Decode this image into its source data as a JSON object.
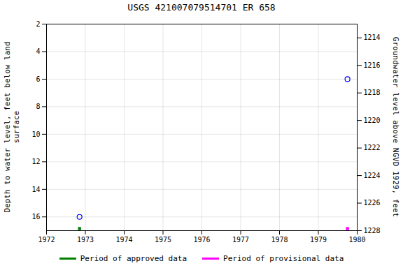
{
  "chart_data": {
    "type": "scatter",
    "title": "USGS 421007079514701 ER   658",
    "ylabel": "Depth to water level, feet below land\nsurface",
    "y2label": "Groundwater level above NGVD 1929, feet",
    "x": [
      1972.85,
      1979.75
    ],
    "values": [
      16.0,
      6.0
    ],
    "color": "#0000ff",
    "marker": "open circle",
    "periods": [
      {
        "name": "Period of approved data",
        "color": "#008000",
        "x": 1972.85
      },
      {
        "name": "Period of provisional data",
        "color": "#ff00ff",
        "x": 1979.75
      }
    ],
    "xlim": [
      1972,
      1980
    ],
    "xticks": [
      1972,
      1973,
      1974,
      1975,
      1976,
      1977,
      1978,
      1979,
      1980
    ],
    "ylim": [
      17,
      2
    ],
    "yticks": [
      2,
      4,
      6,
      8,
      10,
      12,
      14,
      16
    ],
    "y2lim": [
      1228,
      1213
    ],
    "y2ticks": [
      1228,
      1226,
      1224,
      1222,
      1220,
      1218,
      1216,
      1214
    ],
    "grid": true
  }
}
